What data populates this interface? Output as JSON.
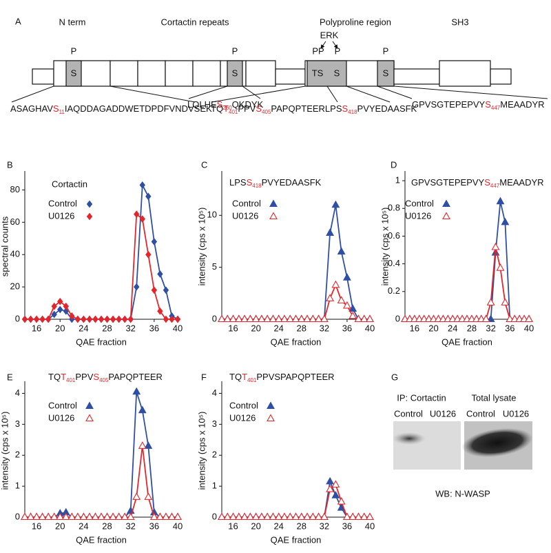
{
  "diagram": {
    "panel": "A",
    "domains": [
      "N term",
      "Cortactin repeats",
      "Polyproline region",
      "SH3"
    ],
    "kinase": "ERK",
    "sites": [
      "S",
      "S",
      "TS",
      "S",
      "S"
    ],
    "phospho": [
      "P",
      "P",
      "PP",
      "P",
      "P"
    ],
    "sequences": [
      [
        {
          "text": "ASAGHAV"
        },
        {
          "text": "S",
          "style": "site"
        },
        {
          "text": "11",
          "style": "index"
        },
        {
          "text": "IAQDDAGADDWETDPDFVNDVSEK"
        }
      ],
      [
        {
          "text": "LQLHE"
        },
        {
          "text": "S",
          "style": "site"
        },
        {
          "text": "260",
          "style": "index"
        },
        {
          "text": "QKDYK"
        }
      ],
      [
        {
          "text": "TQ"
        },
        {
          "text": "T",
          "style": "site"
        },
        {
          "text": "401",
          "style": "index"
        },
        {
          "text": "PPV"
        },
        {
          "text": "S",
          "style": "site"
        },
        {
          "text": "405",
          "style": "index"
        },
        {
          "text": "PAPQPTEERLPS"
        },
        {
          "text": "S",
          "style": "site"
        },
        {
          "text": "418",
          "style": "index"
        },
        {
          "text": "PVYEDAASFK"
        }
      ],
      [
        {
          "text": "GPVSGTEPEPVY"
        },
        {
          "text": "S",
          "style": "site"
        },
        {
          "text": "447",
          "style": "index"
        },
        {
          "text": "MEAADYR"
        }
      ]
    ]
  },
  "chart_data": [
    {
      "type": "line",
      "panel": "B",
      "title": "Cortactin",
      "xlabel": "QAE fraction",
      "ylabel": "spectral counts",
      "x": [
        14,
        15,
        16,
        17,
        18,
        19,
        20,
        21,
        22,
        23,
        24,
        25,
        26,
        27,
        28,
        29,
        30,
        31,
        32,
        33,
        34,
        35,
        36,
        37,
        38,
        39,
        40
      ],
      "xlim": [
        14,
        40
      ],
      "xticks": [
        16,
        20,
        24,
        28,
        32,
        36,
        40
      ],
      "ylim": [
        0,
        90
      ],
      "yticks": [
        0,
        20,
        40,
        60,
        80
      ],
      "legend": "upper left",
      "series": [
        {
          "name": "Control",
          "color": "#2e4fa3",
          "marker": "diamond",
          "marker_fill": "filled",
          "values": [
            0,
            0,
            0,
            0,
            0,
            3,
            6,
            5,
            0,
            0,
            0,
            0,
            0,
            0,
            0,
            0,
            0,
            0,
            0,
            20,
            83,
            76,
            48,
            28,
            18,
            2,
            0
          ]
        },
        {
          "name": "U0126",
          "color": "#e3262c",
          "marker": "diamond",
          "marker_fill": "filled",
          "values": [
            0,
            0,
            0,
            0,
            0,
            8,
            11,
            8,
            2,
            0,
            0,
            0,
            0,
            0,
            0,
            0,
            0,
            0,
            0,
            65,
            62,
            40,
            18,
            5,
            0,
            0,
            0
          ]
        }
      ]
    },
    {
      "type": "line",
      "panel": "C",
      "title": [
        {
          "text": "LPS"
        },
        {
          "text": "S",
          "style": "site"
        },
        {
          "text": "418",
          "style": "index"
        },
        {
          "text": "PVYEDAASFK"
        }
      ],
      "xlabel": "QAE fraction",
      "ylabel": "intensity (cps x 10⁵)",
      "x": [
        14,
        15,
        16,
        17,
        18,
        19,
        20,
        21,
        22,
        23,
        24,
        25,
        26,
        27,
        28,
        29,
        30,
        31,
        32,
        33,
        34,
        35,
        36,
        37,
        38,
        39,
        40
      ],
      "xlim": [
        14,
        40
      ],
      "xticks": [
        16,
        20,
        24,
        28,
        32,
        36,
        40
      ],
      "ylim": [
        0,
        14
      ],
      "yticks": [
        0,
        5,
        10
      ],
      "legend": "upper left",
      "series": [
        {
          "name": "Control",
          "color": "#2e4fa3",
          "marker": "triangle",
          "marker_fill": "filled",
          "values": [
            0,
            0,
            0,
            0,
            0,
            0,
            0,
            0,
            0,
            0,
            0,
            0,
            0,
            0,
            0,
            0,
            0,
            0,
            0,
            8.3,
            11,
            6.5,
            4,
            1,
            0,
            0,
            0
          ]
        },
        {
          "name": "U0126",
          "color": "#e3262c",
          "marker": "triangle",
          "marker_fill": "open",
          "values": [
            0,
            0,
            0,
            0,
            0,
            0,
            0,
            0,
            0,
            0,
            0,
            0,
            0,
            0,
            0,
            0,
            0,
            0,
            0,
            2,
            3.3,
            1.8,
            1.3,
            0.3,
            0,
            0,
            0
          ]
        }
      ]
    },
    {
      "type": "line",
      "panel": "D",
      "title": [
        {
          "text": "GPVSGTEPEPVY"
        },
        {
          "text": "S",
          "style": "site"
        },
        {
          "text": "447",
          "style": "index"
        },
        {
          "text": "MEAADYR"
        }
      ],
      "xlabel": "QAE fraction",
      "ylabel": "intensity (cps x 10⁵)",
      "x": [
        14,
        15,
        16,
        17,
        18,
        19,
        20,
        21,
        22,
        23,
        24,
        25,
        26,
        27,
        28,
        29,
        30,
        31,
        32,
        33,
        34,
        35,
        36,
        37,
        38,
        39,
        40
      ],
      "xlim": [
        14,
        40
      ],
      "xticks": [
        16,
        20,
        24,
        28,
        32,
        36,
        40
      ],
      "ylim": [
        0,
        1.05
      ],
      "yticks": [
        0,
        0.2,
        0.4,
        0.6,
        0.8,
        1
      ],
      "legend": "upper left",
      "series": [
        {
          "name": "Control",
          "color": "#2e4fa3",
          "marker": "triangle",
          "marker_fill": "filled",
          "values": [
            0,
            0,
            0,
            0,
            0,
            0,
            0,
            0,
            0,
            0,
            0,
            0,
            0,
            0,
            0,
            0,
            0,
            0,
            0,
            0.48,
            0.85,
            0.7,
            0,
            0,
            0,
            0,
            0
          ]
        },
        {
          "name": "U0126",
          "color": "#e3262c",
          "marker": "triangle",
          "marker_fill": "open",
          "values": [
            0,
            0,
            0,
            0,
            0,
            0,
            0,
            0,
            0,
            0,
            0,
            0,
            0,
            0,
            0,
            0,
            0,
            0,
            0.12,
            0.52,
            0.37,
            0.12,
            0,
            0,
            0,
            0,
            0
          ]
        }
      ]
    },
    {
      "type": "line",
      "panel": "E",
      "title": [
        {
          "text": "TQ"
        },
        {
          "text": "T",
          "style": "site"
        },
        {
          "text": "401",
          "style": "index"
        },
        {
          "text": "PPV"
        },
        {
          "text": "S",
          "style": "site"
        },
        {
          "text": "405",
          "style": "index"
        },
        {
          "text": "PAPQPTEER"
        }
      ],
      "xlabel": "QAE fraction",
      "ylabel": "intensity (cps x 10⁵)",
      "x": [
        14,
        15,
        16,
        17,
        18,
        19,
        20,
        21,
        22,
        23,
        24,
        25,
        26,
        27,
        28,
        29,
        30,
        31,
        32,
        33,
        34,
        35,
        36,
        37,
        38,
        39,
        40
      ],
      "xlim": [
        14,
        40
      ],
      "xticks": [
        16,
        20,
        24,
        28,
        32,
        36,
        40
      ],
      "ylim": [
        0,
        4.3
      ],
      "yticks": [
        0,
        1,
        2,
        3,
        4
      ],
      "legend": "upper left",
      "series": [
        {
          "name": "Control",
          "color": "#2e4fa3",
          "marker": "triangle",
          "marker_fill": "filled",
          "values": [
            0,
            0,
            0,
            0,
            0,
            0,
            0.12,
            0.15,
            0,
            0,
            0,
            0,
            0,
            0,
            0,
            0,
            0,
            0,
            0.2,
            4.05,
            3.45,
            2.3,
            0.15,
            0,
            0,
            0,
            0
          ]
        },
        {
          "name": "U0126",
          "color": "#e3262c",
          "marker": "triangle",
          "marker_fill": "open",
          "values": [
            0,
            0,
            0,
            0,
            0,
            0,
            0,
            0,
            0,
            0,
            0,
            0,
            0,
            0,
            0,
            0,
            0,
            0,
            0,
            0.65,
            2.3,
            0.65,
            0,
            0,
            0,
            0,
            0
          ]
        }
      ]
    },
    {
      "type": "line",
      "panel": "F",
      "title": [
        {
          "text": "TQ"
        },
        {
          "text": "T",
          "style": "site"
        },
        {
          "text": "401",
          "style": "index"
        },
        {
          "text": "PPVSPAPQPTEER"
        }
      ],
      "xlabel": "QAE fraction",
      "ylabel": "intensity (cps x 10⁵)",
      "x": [
        14,
        15,
        16,
        17,
        18,
        19,
        20,
        21,
        22,
        23,
        24,
        25,
        26,
        27,
        28,
        29,
        30,
        31,
        32,
        33,
        34,
        35,
        36,
        37,
        38,
        39,
        40
      ],
      "xlim": [
        14,
        40
      ],
      "xticks": [
        16,
        20,
        24,
        28,
        32,
        36,
        40
      ],
      "ylim": [
        0,
        4.3
      ],
      "yticks": [
        0,
        1,
        2,
        3,
        4
      ],
      "legend": "upper left",
      "series": [
        {
          "name": "Control",
          "color": "#2e4fa3",
          "marker": "triangle",
          "marker_fill": "filled",
          "values": [
            0,
            0,
            0,
            0,
            0,
            0,
            0,
            0,
            0,
            0,
            0,
            0,
            0,
            0,
            0,
            0,
            0,
            0,
            0,
            1.15,
            0.7,
            0.3,
            0,
            0,
            0,
            0,
            0
          ]
        },
        {
          "name": "U0126",
          "color": "#e3262c",
          "marker": "triangle",
          "marker_fill": "open",
          "values": [
            0,
            0,
            0,
            0,
            0,
            0,
            0,
            0,
            0,
            0,
            0,
            0,
            0,
            0,
            0,
            0,
            0,
            0,
            0,
            0.9,
            1.05,
            0.5,
            0,
            0,
            0,
            0,
            0
          ]
        }
      ]
    }
  ],
  "blot": {
    "panel": "G",
    "groups": [
      "IP: Cortactin",
      "Total lysate"
    ],
    "lanes": [
      "Control",
      "U0126",
      "Control",
      "U0126"
    ],
    "antibody": "WB: N-WASP"
  }
}
